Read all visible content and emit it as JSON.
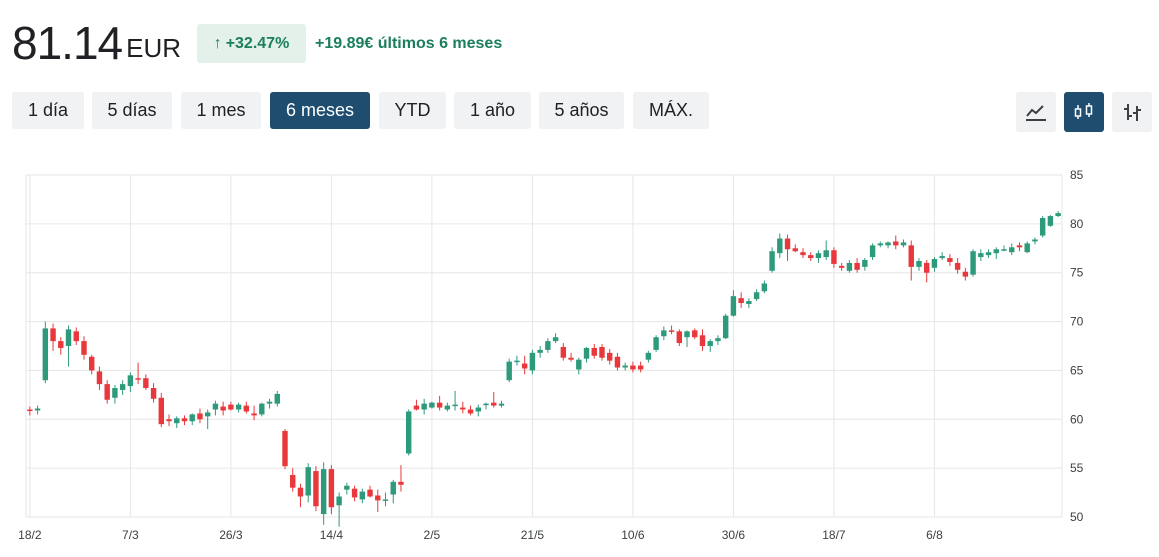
{
  "header": {
    "price": "81.14",
    "currency": "EUR",
    "change_pct": "+32.47%",
    "change_abs": "+19.89€ últimos 6 meses"
  },
  "ranges": [
    {
      "label": "1 día",
      "active": false
    },
    {
      "label": "5 días",
      "active": false
    },
    {
      "label": "1 mes",
      "active": false
    },
    {
      "label": "6 meses",
      "active": true
    },
    {
      "label": "YTD",
      "active": false
    },
    {
      "label": "1 año",
      "active": false
    },
    {
      "label": "5 años",
      "active": false
    },
    {
      "label": "MÁX.",
      "active": false
    }
  ],
  "chart_types": [
    {
      "icon": "line-chart-icon",
      "active": false
    },
    {
      "icon": "candlestick-chart-icon",
      "active": true
    },
    {
      "icon": "ohlc-bar-chart-icon",
      "active": false
    }
  ],
  "colors": {
    "up": "#2e9a7c",
    "down": "#e8383b",
    "accent": "#1e4d6f",
    "positive_text": "#1b7f5b"
  },
  "chart_data": {
    "type": "candlestick",
    "ylim": [
      50,
      85
    ],
    "y_ticks": [
      50,
      55,
      60,
      65,
      70,
      75,
      80,
      85
    ],
    "x_ticks": [
      {
        "label": "18/2",
        "index": 0
      },
      {
        "label": "7/3",
        "index": 13
      },
      {
        "label": "26/3",
        "index": 26
      },
      {
        "label": "14/4",
        "index": 39
      },
      {
        "label": "2/5",
        "index": 52
      },
      {
        "label": "21/5",
        "index": 65
      },
      {
        "label": "10/6",
        "index": 78
      },
      {
        "label": "30/6",
        "index": 91
      },
      {
        "label": "18/7",
        "index": 104
      },
      {
        "label": "6/8",
        "index": 117
      }
    ],
    "grid": true,
    "candles": [
      [
        61.0,
        61.3,
        60.4,
        60.9
      ],
      [
        60.9,
        61.4,
        60.5,
        61.1
      ],
      [
        64.0,
        70.0,
        63.7,
        69.3
      ],
      [
        69.3,
        69.8,
        67.0,
        68.0
      ],
      [
        68.0,
        68.4,
        66.6,
        67.3
      ],
      [
        67.5,
        69.6,
        65.4,
        69.2
      ],
      [
        69.0,
        69.4,
        67.6,
        68.0
      ],
      [
        68.0,
        68.5,
        66.1,
        66.6
      ],
      [
        66.4,
        66.6,
        64.6,
        65.0
      ],
      [
        64.9,
        65.4,
        63.0,
        63.6
      ],
      [
        63.6,
        64.0,
        61.6,
        62.0
      ],
      [
        62.2,
        63.5,
        61.6,
        63.2
      ],
      [
        63.0,
        64.0,
        62.5,
        63.6
      ],
      [
        63.4,
        64.8,
        62.8,
        64.5
      ],
      [
        64.2,
        65.8,
        63.6,
        64.1
      ],
      [
        64.2,
        64.6,
        63.0,
        63.2
      ],
      [
        63.2,
        63.7,
        61.7,
        62.1
      ],
      [
        62.2,
        62.7,
        59.2,
        59.5
      ],
      [
        60.0,
        60.5,
        59.3,
        59.8
      ],
      [
        59.6,
        60.3,
        59.1,
        60.1
      ],
      [
        60.1,
        60.4,
        59.4,
        59.8
      ],
      [
        59.8,
        60.6,
        59.4,
        60.5
      ],
      [
        60.6,
        61.1,
        59.6,
        60.0
      ],
      [
        60.3,
        61.0,
        59.0,
        60.7
      ],
      [
        61.0,
        61.9,
        60.4,
        61.6
      ],
      [
        61.3,
        61.8,
        60.4,
        60.9
      ],
      [
        61.5,
        61.8,
        60.9,
        61.0
      ],
      [
        61.0,
        61.7,
        60.7,
        61.5
      ],
      [
        61.4,
        61.8,
        60.6,
        60.8
      ],
      [
        60.6,
        61.4,
        59.9,
        60.4
      ],
      [
        60.5,
        61.7,
        60.3,
        61.6
      ],
      [
        61.6,
        62.1,
        61.1,
        61.8
      ],
      [
        61.6,
        62.9,
        61.3,
        62.6
      ],
      [
        58.8,
        59.0,
        54.9,
        55.2
      ],
      [
        54.3,
        55.0,
        52.6,
        53.0
      ],
      [
        53.0,
        53.4,
        51.0,
        52.1
      ],
      [
        52.2,
        55.5,
        51.5,
        55.1
      ],
      [
        54.7,
        55.2,
        50.6,
        51.1
      ],
      [
        50.3,
        55.6,
        49.2,
        54.9
      ],
      [
        54.9,
        55.3,
        50.3,
        51.0
      ],
      [
        51.2,
        52.5,
        49.0,
        52.1
      ],
      [
        52.8,
        53.5,
        52.3,
        53.2
      ],
      [
        52.9,
        53.2,
        51.6,
        52.0
      ],
      [
        51.8,
        52.9,
        51.4,
        52.6
      ],
      [
        52.8,
        53.2,
        52.0,
        52.1
      ],
      [
        52.2,
        52.8,
        50.5,
        51.7
      ],
      [
        51.7,
        52.5,
        51.1,
        51.8
      ],
      [
        52.3,
        53.8,
        51.4,
        53.6
      ],
      [
        53.6,
        55.3,
        52.6,
        53.3
      ],
      [
        56.5,
        61.0,
        56.3,
        60.8
      ],
      [
        61.4,
        62.0,
        60.9,
        61.0
      ],
      [
        61.0,
        62.1,
        60.5,
        61.6
      ],
      [
        61.2,
        61.8,
        61.1,
        61.7
      ],
      [
        61.7,
        62.4,
        60.9,
        61.2
      ],
      [
        61.0,
        61.7,
        60.8,
        61.4
      ],
      [
        61.4,
        62.9,
        60.9,
        61.5
      ],
      [
        61.2,
        61.8,
        60.6,
        61.0
      ],
      [
        61.0,
        61.4,
        60.4,
        60.6
      ],
      [
        60.8,
        61.5,
        60.3,
        61.2
      ],
      [
        61.5,
        61.7,
        61.0,
        61.6
      ],
      [
        61.7,
        62.8,
        61.2,
        61.4
      ],
      [
        61.4,
        61.9,
        61.2,
        61.6
      ],
      [
        64.0,
        66.2,
        63.8,
        65.9
      ],
      [
        65.9,
        66.5,
        65.5,
        66.0
      ],
      [
        65.7,
        66.5,
        64.6,
        65.2
      ],
      [
        65.0,
        67.1,
        64.6,
        66.8
      ],
      [
        66.8,
        67.5,
        66.3,
        67.1
      ],
      [
        67.1,
        68.3,
        66.8,
        68.0
      ],
      [
        68.0,
        68.8,
        67.8,
        68.4
      ],
      [
        67.4,
        67.8,
        66.0,
        66.3
      ],
      [
        66.3,
        66.8,
        65.9,
        66.1
      ],
      [
        65.1,
        66.3,
        64.6,
        66.1
      ],
      [
        66.2,
        67.4,
        65.8,
        67.3
      ],
      [
        67.3,
        67.7,
        66.2,
        66.5
      ],
      [
        67.4,
        67.7,
        66.0,
        66.3
      ],
      [
        66.8,
        67.2,
        65.6,
        66.0
      ],
      [
        66.4,
        66.8,
        65.0,
        65.3
      ],
      [
        65.3,
        65.8,
        65.0,
        65.5
      ],
      [
        65.5,
        65.9,
        64.8,
        65.1
      ],
      [
        65.5,
        65.9,
        64.8,
        65.1
      ],
      [
        66.1,
        67.0,
        65.8,
        66.8
      ],
      [
        67.1,
        68.6,
        66.9,
        68.4
      ],
      [
        68.5,
        69.5,
        68.1,
        69.1
      ],
      [
        69.1,
        69.6,
        68.7,
        69.0
      ],
      [
        69.0,
        69.2,
        67.5,
        67.8
      ],
      [
        68.4,
        69.1,
        67.4,
        69.0
      ],
      [
        69.1,
        69.3,
        68.2,
        68.4
      ],
      [
        68.6,
        69.2,
        67.0,
        67.5
      ],
      [
        67.5,
        68.2,
        66.9,
        68.0
      ],
      [
        68.0,
        68.6,
        67.6,
        68.3
      ],
      [
        68.3,
        70.8,
        68.2,
        70.6
      ],
      [
        70.6,
        73.2,
        70.5,
        72.6
      ],
      [
        72.4,
        73.0,
        71.4,
        71.9
      ],
      [
        71.8,
        72.4,
        71.4,
        72.1
      ],
      [
        72.3,
        73.3,
        72.1,
        73.0
      ],
      [
        73.1,
        74.2,
        72.9,
        73.9
      ],
      [
        75.2,
        77.6,
        75.0,
        77.2
      ],
      [
        77.0,
        79.0,
        76.5,
        78.5
      ],
      [
        78.5,
        78.9,
        76.2,
        77.4
      ],
      [
        77.5,
        77.9,
        77.1,
        77.2
      ],
      [
        77.1,
        77.5,
        76.5,
        76.8
      ],
      [
        76.8,
        77.1,
        76.2,
        76.5
      ],
      [
        76.5,
        77.3,
        76.0,
        77.0
      ],
      [
        76.6,
        78.3,
        76.3,
        77.3
      ],
      [
        77.3,
        77.6,
        75.5,
        75.9
      ],
      [
        75.7,
        76.0,
        75.2,
        75.5
      ],
      [
        75.2,
        76.3,
        75.0,
        76.0
      ],
      [
        76.0,
        76.5,
        75.0,
        75.3
      ],
      [
        75.6,
        76.5,
        75.2,
        76.3
      ],
      [
        76.6,
        78.0,
        76.3,
        77.8
      ],
      [
        77.8,
        78.2,
        77.6,
        78.0
      ],
      [
        77.8,
        78.2,
        77.5,
        78.1
      ],
      [
        78.2,
        78.8,
        77.4,
        77.8
      ],
      [
        77.8,
        78.4,
        77.6,
        78.1
      ],
      [
        77.8,
        78.3,
        74.2,
        75.6
      ],
      [
        75.6,
        76.5,
        75.2,
        76.2
      ],
      [
        76.0,
        76.3,
        74.0,
        75.0
      ],
      [
        75.5,
        76.6,
        75.1,
        76.4
      ],
      [
        76.5,
        77.1,
        76.3,
        76.7
      ],
      [
        76.5,
        76.9,
        75.7,
        76.1
      ],
      [
        76.0,
        76.5,
        74.9,
        75.3
      ],
      [
        75.1,
        75.5,
        74.2,
        74.6
      ],
      [
        74.8,
        77.4,
        74.6,
        77.2
      ],
      [
        76.6,
        77.4,
        76.2,
        77.0
      ],
      [
        76.8,
        77.4,
        76.5,
        77.1
      ],
      [
        77.0,
        77.6,
        76.4,
        77.4
      ],
      [
        77.3,
        77.8,
        77.2,
        77.4
      ],
      [
        77.1,
        78.0,
        76.8,
        77.6
      ],
      [
        77.8,
        78.1,
        77.2,
        77.6
      ],
      [
        77.1,
        78.2,
        77.0,
        78.0
      ],
      [
        78.2,
        78.6,
        77.9,
        78.4
      ],
      [
        78.8,
        80.8,
        78.6,
        80.6
      ],
      [
        79.8,
        80.9,
        79.7,
        80.8
      ],
      [
        80.8,
        81.3,
        80.7,
        81.1
      ]
    ]
  }
}
